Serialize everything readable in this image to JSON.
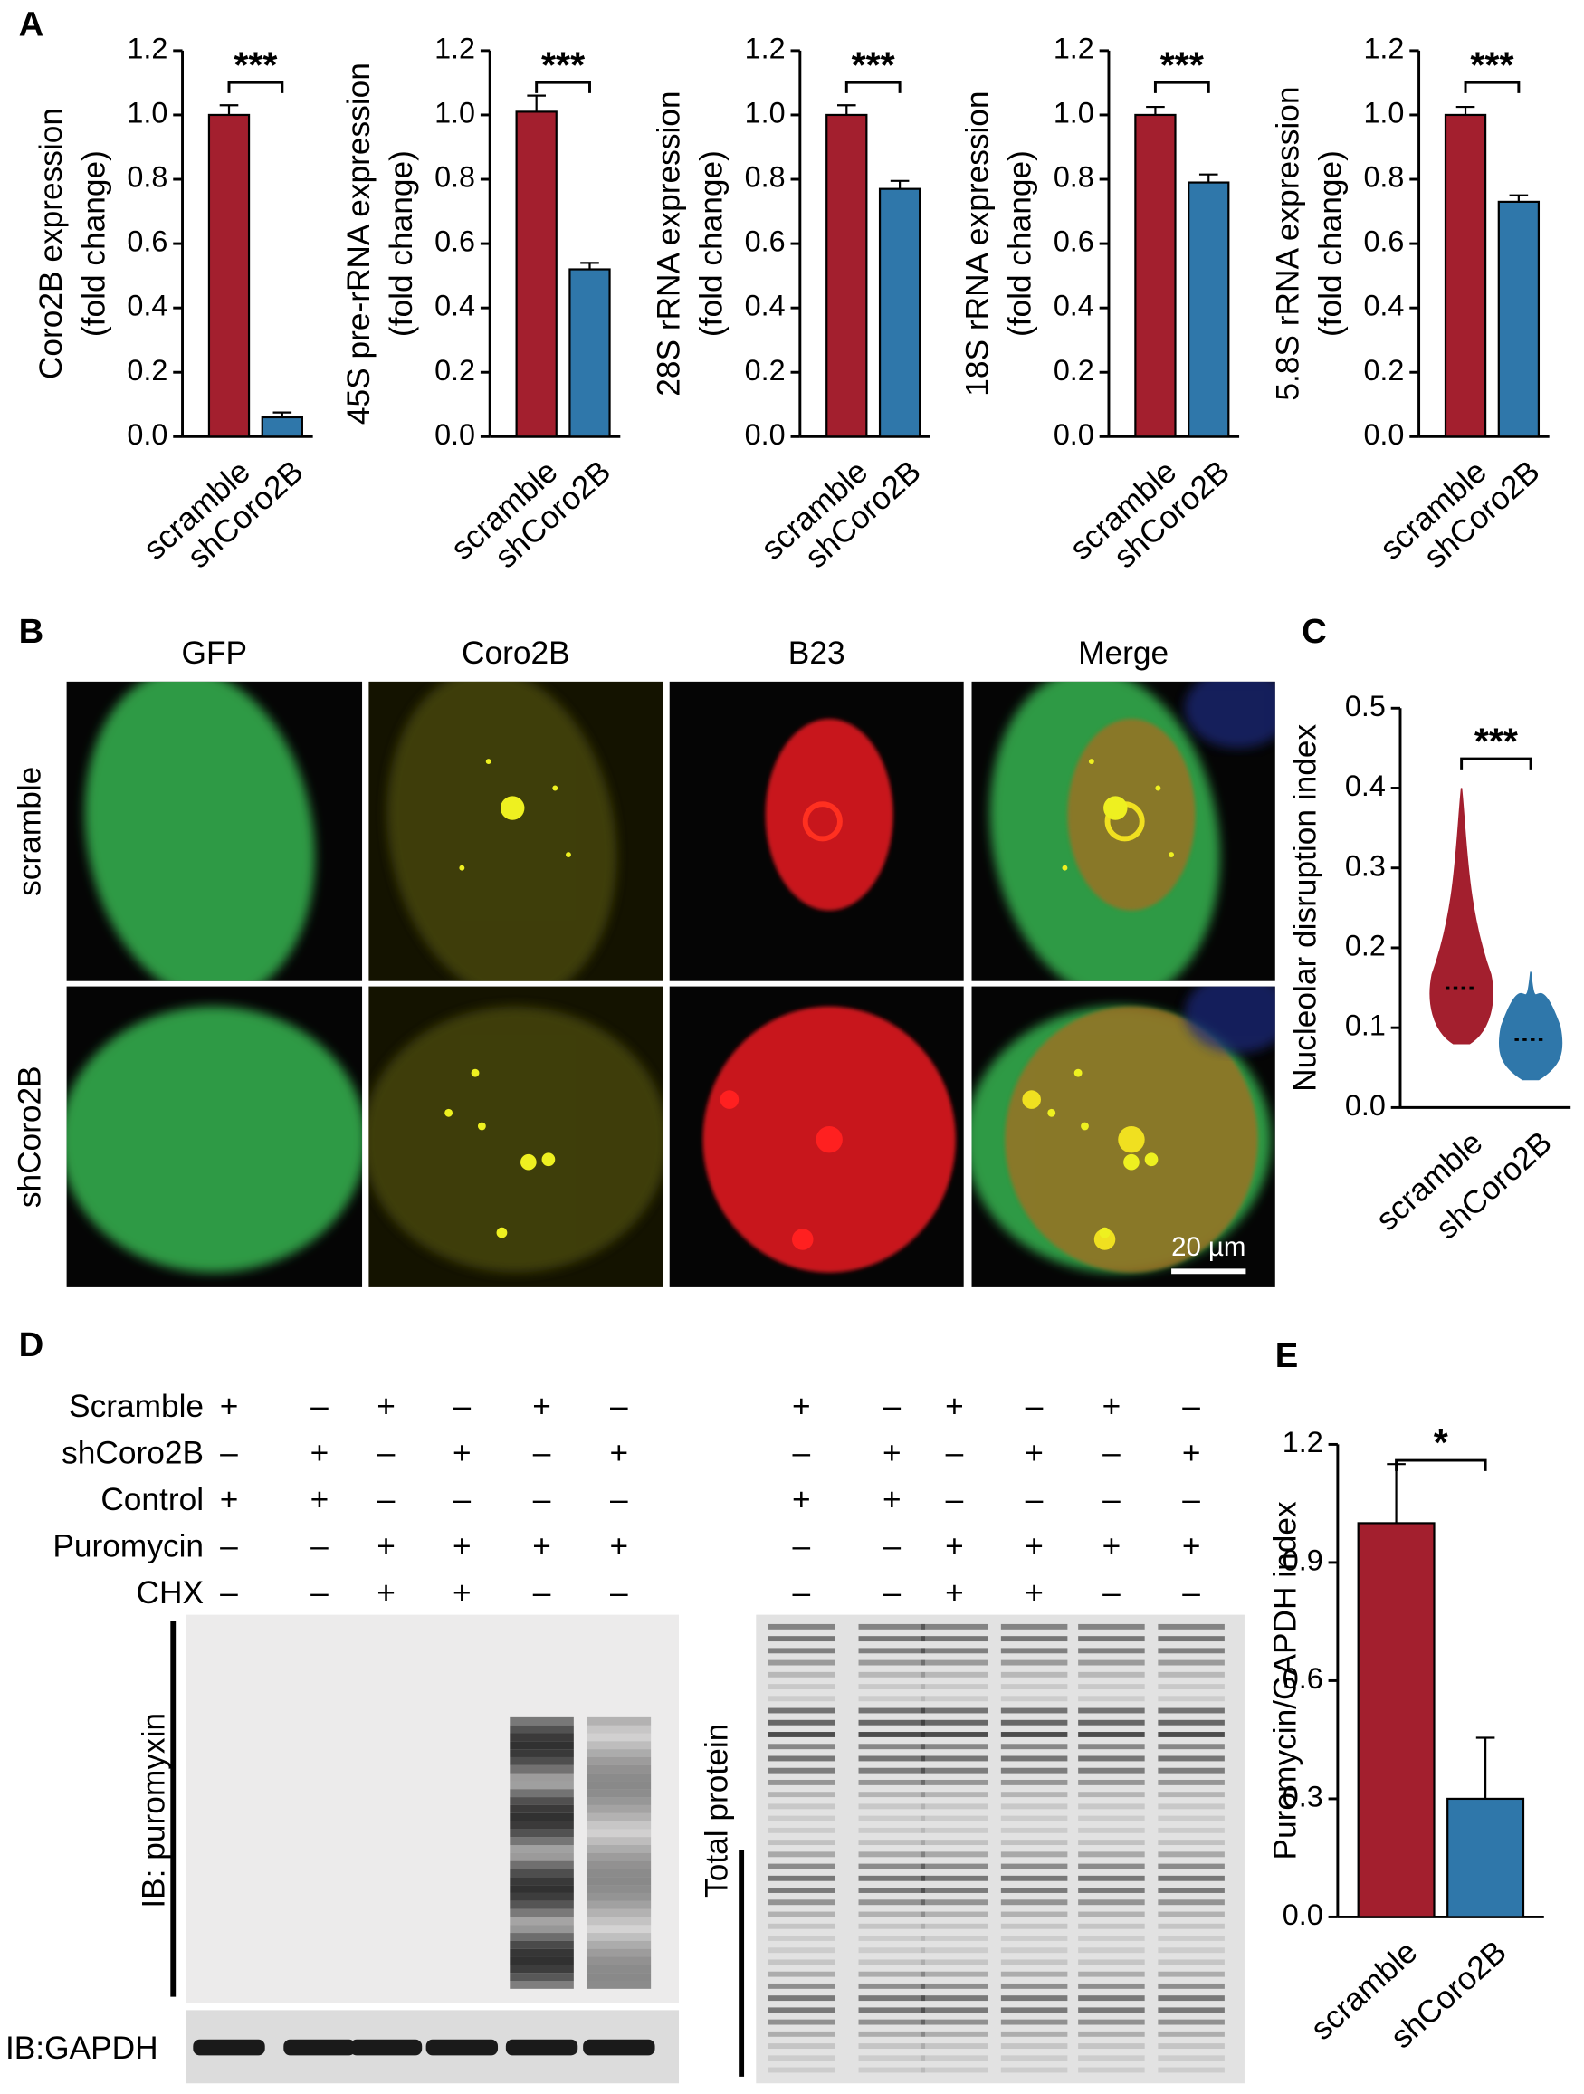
{
  "panel_labels": [
    "A",
    "B",
    "C",
    "D",
    "E"
  ],
  "chart_data": [
    {
      "type": "bar",
      "ylabel": [
        "Coro2B expression",
        "(fold change)"
      ],
      "categories": [
        "scramble",
        "shCoro2B"
      ],
      "values": [
        1.0,
        0.06
      ],
      "errors": [
        0.03,
        0.015
      ],
      "colors": [
        "#a31f2e",
        "#2f77aa"
      ],
      "ylim": [
        0,
        1.2
      ],
      "yticks": [
        {
          "value": 0,
          "label": "0.0"
        },
        0.2,
        0.4,
        0.6,
        0.8,
        {
          "value": 1,
          "label": "1.0"
        },
        1.2
      ],
      "annotation": "***"
    },
    {
      "type": "bar",
      "ylabel": [
        "45S pre-rRNA expression",
        "(fold change)"
      ],
      "categories": [
        "scramble",
        "shCoro2B"
      ],
      "values": [
        1.01,
        0.52
      ],
      "errors": [
        0.05,
        0.02
      ],
      "colors": [
        "#a31f2e",
        "#2f77aa"
      ],
      "ylim": [
        0,
        1.2
      ],
      "yticks": [
        {
          "value": 0,
          "label": "0.0"
        },
        0.2,
        0.4,
        0.6,
        0.8,
        {
          "value": 1,
          "label": "1.0"
        },
        1.2
      ],
      "annotation": "***"
    },
    {
      "type": "bar",
      "ylabel": [
        "28S rRNA expression",
        "(fold change)"
      ],
      "categories": [
        "scramble",
        "shCoro2B"
      ],
      "values": [
        1.0,
        0.77
      ],
      "errors": [
        0.03,
        0.025
      ],
      "colors": [
        "#a31f2e",
        "#2f77aa"
      ],
      "ylim": [
        0,
        1.2
      ],
      "yticks": [
        {
          "value": 0,
          "label": "0.0"
        },
        0.2,
        0.4,
        0.6,
        0.8,
        {
          "value": 1,
          "label": "1.0"
        },
        1.2
      ],
      "annotation": "***"
    },
    {
      "type": "bar",
      "ylabel": [
        "18S rRNA expression",
        "(fold change)"
      ],
      "categories": [
        "scramble",
        "shCoro2B"
      ],
      "values": [
        1.0,
        0.79
      ],
      "errors": [
        0.025,
        0.025
      ],
      "colors": [
        "#a31f2e",
        "#2f77aa"
      ],
      "ylim": [
        0,
        1.2
      ],
      "yticks": [
        {
          "value": 0,
          "label": "0.0"
        },
        0.2,
        0.4,
        0.6,
        0.8,
        {
          "value": 1,
          "label": "1.0"
        },
        1.2
      ],
      "annotation": "***"
    },
    {
      "type": "bar",
      "ylabel": [
        "5.8S rRNA expression",
        "(fold change)"
      ],
      "categories": [
        "scramble",
        "shCoro2B"
      ],
      "values": [
        1.0,
        0.73
      ],
      "errors": [
        0.025,
        0.02
      ],
      "colors": [
        "#a31f2e",
        "#2f77aa"
      ],
      "ylim": [
        0,
        1.2
      ],
      "yticks": [
        {
          "value": 0,
          "label": "0.0"
        },
        0.2,
        0.4,
        0.6,
        0.8,
        {
          "value": 1,
          "label": "1.0"
        },
        1.2
      ],
      "annotation": "***"
    },
    {
      "type": "violin",
      "ylabel": [
        "Nucleolar disruption index"
      ],
      "categories": [
        "scramble",
        "shCoro2B"
      ],
      "mins": [
        0.08,
        0.035
      ],
      "medians": [
        0.15,
        0.085
      ],
      "maxs": [
        0.4,
        0.17
      ],
      "colors": [
        "#a31f2e",
        "#2f77aa"
      ],
      "ylim": [
        0,
        0.5
      ],
      "yticks": [
        {
          "value": 0,
          "label": "0.0"
        },
        0.1,
        0.2,
        0.3,
        0.4,
        0.5
      ],
      "annotation": "***"
    },
    {
      "type": "bar",
      "ylabel": [
        "Puromycin/GAPDH index"
      ],
      "categories": [
        "scramble",
        "shCoro2B"
      ],
      "values": [
        1.0,
        0.3
      ],
      "errors": [
        0.15,
        0.155
      ],
      "colors": [
        "#a31f2e",
        "#2f77aa"
      ],
      "ylim": [
        0,
        1.2
      ],
      "yticks": [
        {
          "value": 0,
          "label": "0.0"
        },
        0.3,
        0.6,
        0.9,
        1.2
      ],
      "annotation": "*"
    }
  ],
  "microscopy": {
    "columns": [
      "GFP",
      "Coro2B",
      "B23",
      "Merge"
    ],
    "rows": [
      "scramble",
      "shCoro2B"
    ],
    "scale_bar": "20 µm"
  },
  "blot": {
    "conditions": [
      {
        "label": "Scramble",
        "signs": [
          "+",
          "–",
          "+",
          "–",
          "+",
          "–",
          "+",
          "–",
          "+",
          "–",
          "+",
          "–"
        ]
      },
      {
        "label": "shCoro2B",
        "signs": [
          "–",
          "+",
          "–",
          "+",
          "–",
          "+",
          "–",
          "+",
          "–",
          "+",
          "–",
          "+"
        ]
      },
      {
        "label": "Control",
        "signs": [
          "+",
          "+",
          "–",
          "–",
          "–",
          "–",
          "+",
          "+",
          "–",
          "–",
          "–",
          "–"
        ]
      },
      {
        "label": "Puromycin",
        "signs": [
          "–",
          "–",
          "+",
          "+",
          "+",
          "+",
          "–",
          "–",
          "+",
          "+",
          "+",
          "+"
        ]
      },
      {
        "label": "CHX",
        "signs": [
          "–",
          "–",
          "+",
          "+",
          "–",
          "–",
          "–",
          "–",
          "+",
          "+",
          "–",
          "–"
        ]
      }
    ],
    "labels": {
      "puromycin": "IB: puromyxin",
      "gapdh": "IB:GAPDH",
      "total": "Total protein"
    }
  }
}
